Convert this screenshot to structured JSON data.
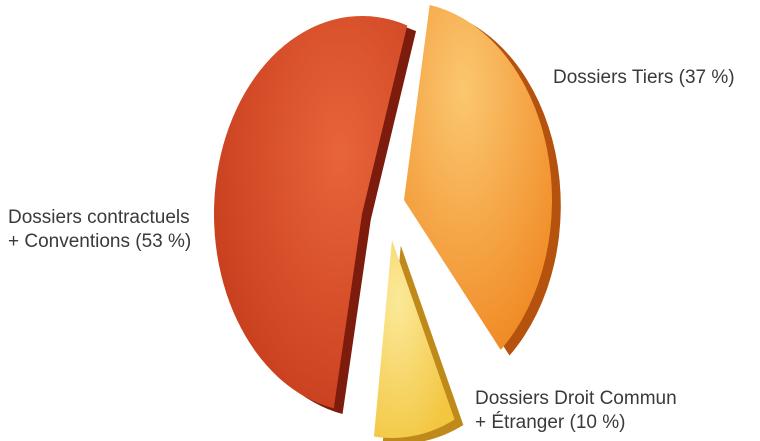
{
  "chart_data": {
    "type": "pie",
    "style": "3d-exploded",
    "title": "",
    "slices": [
      {
        "key": "tiers",
        "label": [
          "Dossiers Tiers (37 %)"
        ],
        "value": 37,
        "color": "#f08a24",
        "highlight": "#fbc770",
        "side": "#b5520e"
      },
      {
        "key": "droit_commun",
        "label": [
          "Dossiers Droit Commun",
          "+ Étranger (10 %)"
        ],
        "value": 10,
        "color": "#f3c640",
        "highlight": "#fbe99a",
        "side": "#c08a1a"
      },
      {
        "key": "contractuels",
        "label": [
          "Dossiers contractuels",
          "+ Conventions (53 %)"
        ],
        "value": 53,
        "color": "#c43a1a",
        "highlight": "#e8643a",
        "side": "#7d1c0c"
      }
    ]
  }
}
